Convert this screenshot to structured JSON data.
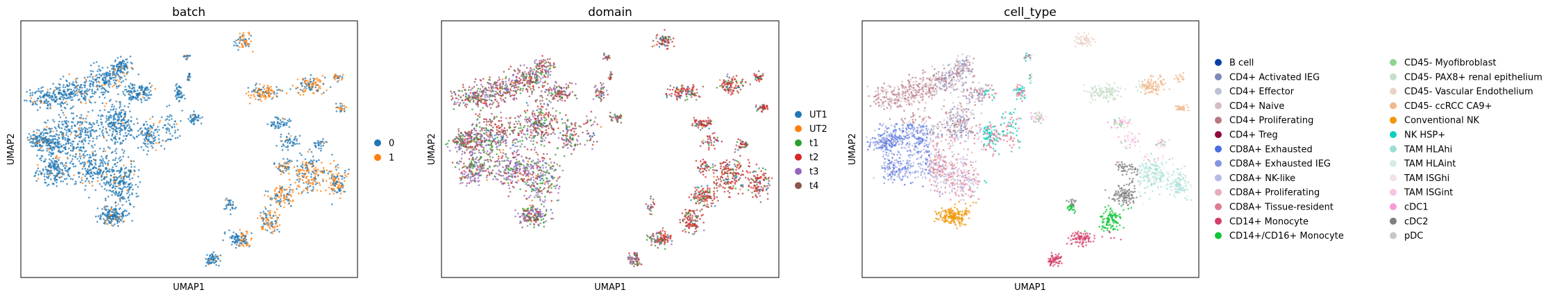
{
  "chart_data": [
    {
      "type": "scatter",
      "title": "batch",
      "xlabel": "UMAP1",
      "ylabel": "UMAP2",
      "grid": false,
      "legend_placement": "right",
      "legend_columns": 1,
      "series": [
        {
          "name": "0",
          "color": "#1f77b4"
        },
        {
          "name": "1",
          "color": "#ff7f0e"
        }
      ]
    },
    {
      "type": "scatter",
      "title": "domain",
      "xlabel": "UMAP1",
      "ylabel": "UMAP2",
      "grid": false,
      "legend_placement": "right",
      "legend_columns": 1,
      "series": [
        {
          "name": "UT1",
          "color": "#1f77b4"
        },
        {
          "name": "UT2",
          "color": "#ff7f0e"
        },
        {
          "name": "t1",
          "color": "#2ca02c"
        },
        {
          "name": "t2",
          "color": "#d62728"
        },
        {
          "name": "t3",
          "color": "#9467bd"
        },
        {
          "name": "t4",
          "color": "#8c564b"
        }
      ]
    },
    {
      "type": "scatter",
      "title": "cell_type",
      "xlabel": "UMAP1",
      "ylabel": "UMAP2",
      "grid": false,
      "legend_placement": "right",
      "legend_columns": 2,
      "series": [
        {
          "name": "B cell",
          "color": "#023fa5"
        },
        {
          "name": "CD4+ Activated IEG",
          "color": "#7d87b9"
        },
        {
          "name": "CD4+ Effector",
          "color": "#bec1d4"
        },
        {
          "name": "CD4+ Naive",
          "color": "#d6bcc0"
        },
        {
          "name": "CD4+ Proliferating",
          "color": "#bb7784"
        },
        {
          "name": "CD4+ Treg",
          "color": "#8e063b"
        },
        {
          "name": "CD8A+ Exhausted",
          "color": "#4a6fe3"
        },
        {
          "name": "CD8A+ Exhausted IEG",
          "color": "#8595e1"
        },
        {
          "name": "CD8A+ NK-like",
          "color": "#b5bbe3"
        },
        {
          "name": "CD8A+ Proliferating",
          "color": "#e6afb9"
        },
        {
          "name": "CD8A+ Tissue-resident",
          "color": "#e07b91"
        },
        {
          "name": "CD14+ Monocyte",
          "color": "#d33f6a"
        },
        {
          "name": "CD14+/CD16+ Monocyte",
          "color": "#11c638"
        },
        {
          "name": "CD45- Myofibroblast",
          "color": "#8dd593"
        },
        {
          "name": "CD45- PAX8+ renal epithelium",
          "color": "#c6dec7"
        },
        {
          "name": "CD45- Vascular Endothelium",
          "color": "#ead3c6"
        },
        {
          "name": "CD45- ccRCC CA9+",
          "color": "#f0b98d"
        },
        {
          "name": "Conventional NK",
          "color": "#ef9708"
        },
        {
          "name": "NK HSP+",
          "color": "#0fcfc0"
        },
        {
          "name": "TAM HLAhi",
          "color": "#9cded6"
        },
        {
          "name": "TAM HLAint",
          "color": "#d5eae7"
        },
        {
          "name": "TAM ISGhi",
          "color": "#f3e1eb"
        },
        {
          "name": "TAM ISGint",
          "color": "#f6c4e1"
        },
        {
          "name": "cDC1",
          "color": "#f79cd4"
        },
        {
          "name": "cDC2",
          "color": "#7f7f7f"
        },
        {
          "name": "pDC",
          "color": "#c7c7c7"
        }
      ]
    }
  ]
}
